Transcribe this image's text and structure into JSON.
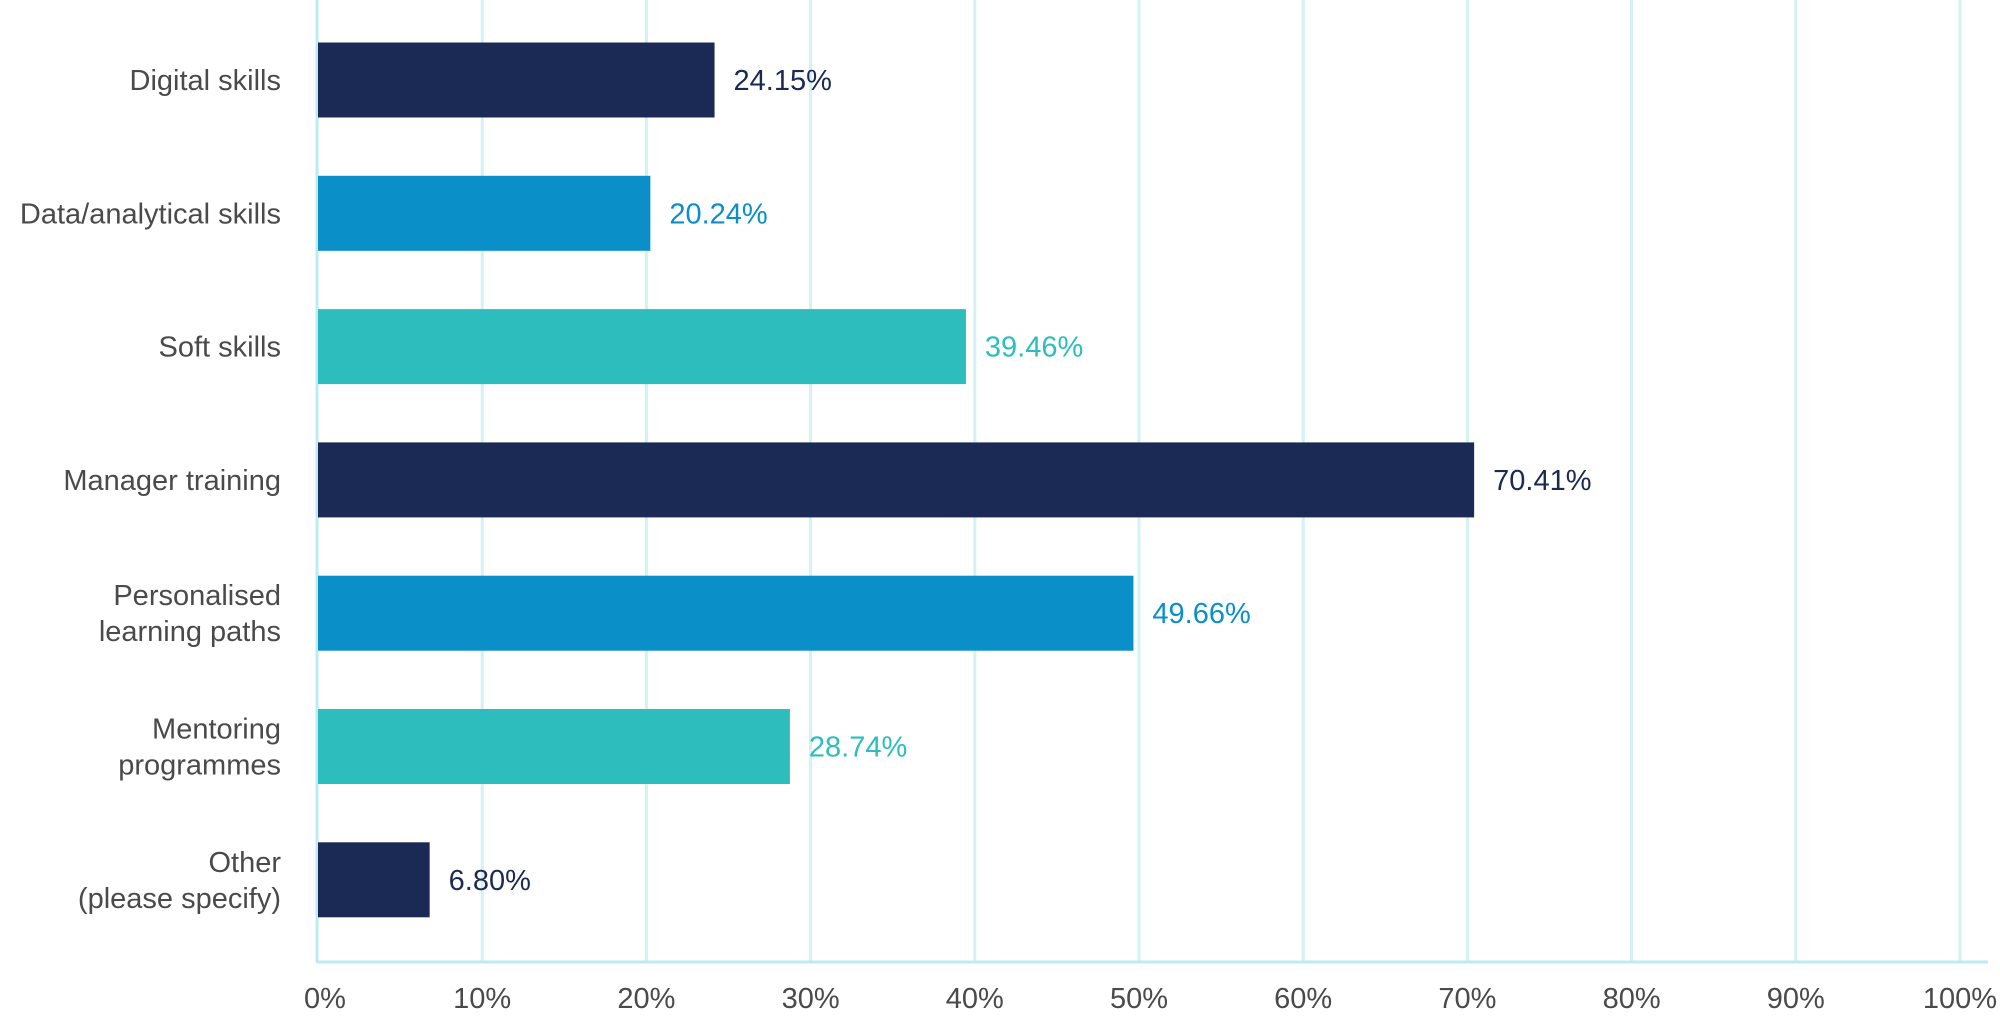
{
  "chart_data": {
    "type": "bar",
    "orientation": "horizontal",
    "categories": [
      [
        "Digital skills"
      ],
      [
        "Data/analytical skills"
      ],
      [
        "Soft skills"
      ],
      [
        "Manager training"
      ],
      [
        "Personalised",
        "learning paths"
      ],
      [
        "Mentoring",
        "programmes"
      ],
      [
        "Other",
        "(please specify)"
      ]
    ],
    "values": [
      24.15,
      20.24,
      39.46,
      70.41,
      49.66,
      28.74,
      6.8
    ],
    "value_labels": [
      "24.15%",
      "20.24%",
      "39.46%",
      "70.41%",
      "49.66%",
      "28.74%",
      "6.80%"
    ],
    "bar_colors": [
      "#1b2a55",
      "#0a8fc8",
      "#2dbdbd",
      "#1b2a55",
      "#0a8fc8",
      "#2dbdbd",
      "#1b2a55"
    ],
    "xlim": [
      0,
      100
    ],
    "x_ticks": [
      0,
      10,
      20,
      30,
      40,
      50,
      60,
      70,
      80,
      90,
      100
    ],
    "x_tick_labels": [
      "0%",
      "10%",
      "20%",
      "30%",
      "40%",
      "50%",
      "60%",
      "70%",
      "80%",
      "90%",
      "100%"
    ],
    "grid": true,
    "grid_color": "#d4f1f3",
    "axis_color": "#bfeaf0",
    "legend": "none",
    "title": "",
    "xlabel": "",
    "ylabel": ""
  }
}
